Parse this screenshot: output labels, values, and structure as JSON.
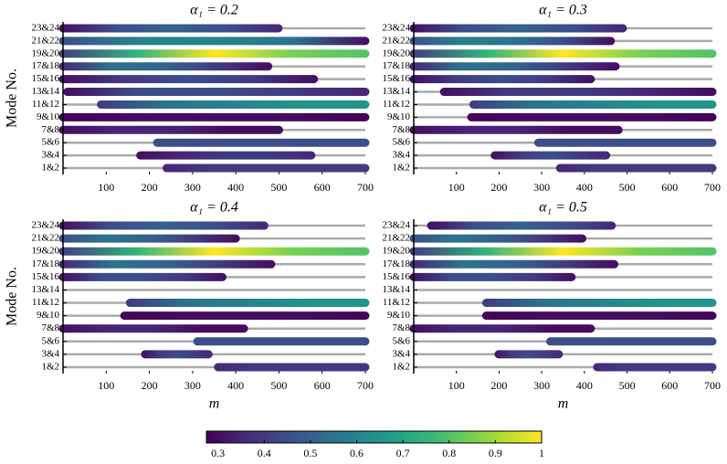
{
  "chart_data": [
    {
      "type": "range-bar",
      "title": "α₁ = 0.2",
      "ylabel": "Mode No.",
      "categories": [
        "23&24",
        "21&22",
        "19&20",
        "17&18",
        "15&16",
        "13&14",
        "11&12",
        "9&10",
        "7&8",
        "5&6",
        "3&4",
        "1&2"
      ],
      "starts": [
        0,
        0,
        0,
        0,
        0,
        10,
        88,
        0,
        0,
        218,
        179,
        240
      ],
      "ends": [
        499,
        700,
        700,
        475,
        581,
        700,
        700,
        700,
        500,
        700,
        575,
        700
      ],
      "color_values": [
        [
          0.3,
          0.45,
          0.5,
          0.45,
          0.35
        ],
        [
          0.45,
          0.6,
          0.6,
          0.55,
          0.3
        ],
        [
          0.4,
          0.75,
          1.0,
          0.85,
          0.8
        ],
        [
          0.35,
          0.55,
          0.5,
          0.4,
          0.3
        ],
        [
          0.3,
          0.4,
          0.45,
          0.4,
          0.3
        ],
        [
          0.3,
          0.45,
          0.45,
          0.4,
          0.35
        ],
        [
          0.4,
          0.55,
          0.6,
          0.65,
          0.65
        ],
        [
          0.28,
          0.3,
          0.3,
          0.3,
          0.28
        ],
        [
          0.3,
          0.35,
          0.35,
          0.3,
          0.3
        ],
        [
          0.45,
          0.45,
          0.45,
          0.45,
          0.45
        ],
        [
          0.3,
          0.35,
          0.4,
          0.4,
          0.35
        ],
        [
          0.35,
          0.4,
          0.4,
          0.4,
          0.4
        ]
      ],
      "xlim": [
        0,
        700
      ],
      "xticks": [
        100,
        200,
        300,
        400,
        500,
        600,
        700
      ]
    },
    {
      "type": "range-bar",
      "title": "α₁ = 0.3",
      "categories": [
        "23&24",
        "21&22",
        "19&20",
        "17&18",
        "15&16",
        "13&14",
        "11&12",
        "9&10",
        "7&8",
        "5&6",
        "3&4",
        "1&2"
      ],
      "starts": [
        0,
        0,
        0,
        0,
        0,
        71,
        140,
        135,
        0,
        292,
        190,
        343
      ],
      "ends": [
        490,
        462,
        700,
        473,
        415,
        700,
        700,
        700,
        480,
        700,
        451,
        700
      ],
      "color_values": [
        [
          0.3,
          0.45,
          0.5,
          0.45,
          0.35
        ],
        [
          0.45,
          0.6,
          0.55,
          0.45,
          0.3
        ],
        [
          0.4,
          0.75,
          1.0,
          0.85,
          0.8
        ],
        [
          0.35,
          0.55,
          0.5,
          0.4,
          0.3
        ],
        [
          0.3,
          0.4,
          0.45,
          0.4,
          0.3
        ],
        [
          0.3,
          0.4,
          0.4,
          0.35,
          0.3
        ],
        [
          0.4,
          0.55,
          0.6,
          0.65,
          0.65
        ],
        [
          0.28,
          0.3,
          0.3,
          0.3,
          0.28
        ],
        [
          0.3,
          0.35,
          0.35,
          0.3,
          0.3
        ],
        [
          0.45,
          0.45,
          0.45,
          0.45,
          0.45
        ],
        [
          0.3,
          0.4,
          0.45,
          0.4,
          0.35
        ],
        [
          0.35,
          0.4,
          0.4,
          0.4,
          0.4
        ]
      ],
      "xlim": [
        0,
        700
      ],
      "xticks": [
        100,
        200,
        300,
        400,
        500,
        600,
        700
      ]
    },
    {
      "type": "range-bar",
      "title": "α₁ = 0.4",
      "ylabel": "Mode No.",
      "xlabel": "m",
      "categories": [
        "23&24",
        "21&22",
        "19&20",
        "17&18",
        "15&16",
        "13&14",
        "11&12",
        "9&10",
        "7&8",
        "5&6",
        "3&4",
        "1&2"
      ],
      "starts": [
        0,
        0,
        0,
        0,
        0,
        null,
        155,
        142,
        0,
        311,
        190,
        359
      ],
      "ends": [
        466,
        400,
        700,
        482,
        369,
        null,
        700,
        700,
        419,
        700,
        337,
        700
      ],
      "color_values": [
        [
          0.3,
          0.45,
          0.5,
          0.45,
          0.35
        ],
        [
          0.45,
          0.55,
          0.5,
          0.4,
          0.3
        ],
        [
          0.4,
          0.75,
          1.0,
          0.85,
          0.8
        ],
        [
          0.35,
          0.55,
          0.5,
          0.4,
          0.3
        ],
        [
          0.3,
          0.45,
          0.45,
          0.4,
          0.3
        ],
        null,
        [
          0.4,
          0.55,
          0.6,
          0.65,
          0.65
        ],
        [
          0.28,
          0.3,
          0.3,
          0.3,
          0.28
        ],
        [
          0.3,
          0.35,
          0.35,
          0.3,
          0.3
        ],
        [
          0.45,
          0.45,
          0.45,
          0.45,
          0.45
        ],
        [
          0.3,
          0.4,
          0.45,
          0.4,
          0.35
        ],
        [
          0.35,
          0.4,
          0.4,
          0.4,
          0.4
        ]
      ],
      "xlim": [
        0,
        700
      ],
      "xticks": [
        100,
        200,
        300,
        400,
        500,
        600,
        700
      ]
    },
    {
      "type": "range-bar",
      "title": "α₁ = 0.5",
      "xlabel": "m",
      "categories": [
        "23&24",
        "21&22",
        "19&20",
        "17&18",
        "15&16",
        "13&14",
        "11&12",
        "9&10",
        "7&8",
        "5&6",
        "3&4",
        "1&2"
      ],
      "starts": [
        41,
        0,
        0,
        0,
        0,
        null,
        170,
        170,
        0,
        320,
        199,
        430
      ],
      "ends": [
        464,
        395,
        700,
        470,
        370,
        null,
        700,
        700,
        415,
        700,
        340,
        700
      ],
      "color_values": [
        [
          0.3,
          0.45,
          0.5,
          0.45,
          0.35
        ],
        [
          0.45,
          0.55,
          0.5,
          0.4,
          0.3
        ],
        [
          0.4,
          0.75,
          1.0,
          0.85,
          0.8
        ],
        [
          0.35,
          0.55,
          0.5,
          0.4,
          0.3
        ],
        [
          0.3,
          0.45,
          0.45,
          0.4,
          0.3
        ],
        null,
        [
          0.4,
          0.55,
          0.6,
          0.65,
          0.65
        ],
        [
          0.28,
          0.3,
          0.3,
          0.3,
          0.28
        ],
        [
          0.3,
          0.35,
          0.35,
          0.3,
          0.3
        ],
        [
          0.45,
          0.45,
          0.45,
          0.45,
          0.45
        ],
        [
          0.3,
          0.4,
          0.45,
          0.4,
          0.35
        ],
        [
          0.35,
          0.4,
          0.4,
          0.4,
          0.4
        ]
      ],
      "xlim": [
        0,
        700
      ],
      "xticks": [
        100,
        200,
        300,
        400,
        500,
        600,
        700
      ]
    },
    {
      "type": "colorbar",
      "xlim": [
        0.275,
        1.0
      ],
      "xticks": [
        0.3,
        0.4,
        0.5,
        0.6,
        0.7,
        0.8,
        0.9,
        1
      ],
      "colormap": [
        "#440154",
        "#482878",
        "#3e4989",
        "#31688e",
        "#26828e",
        "#1f9e89",
        "#35b779",
        "#6ece58",
        "#b5de2b",
        "#fde725"
      ]
    }
  ]
}
